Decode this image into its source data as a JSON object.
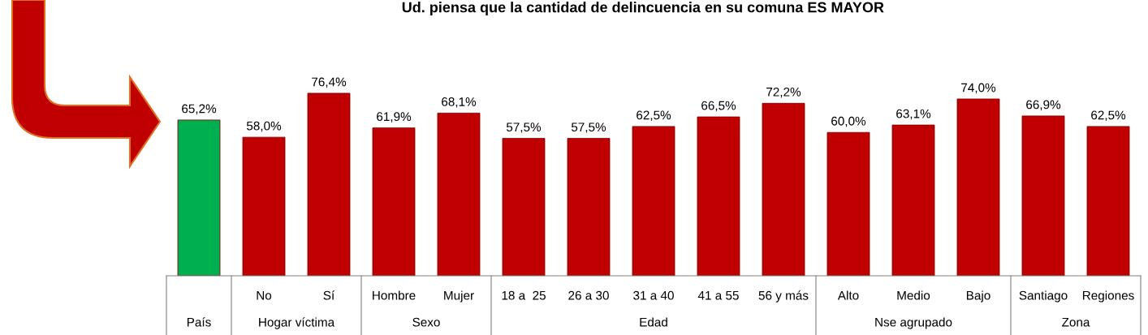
{
  "chart_data": {
    "type": "bar",
    "title": "Ud. piensa que la cantidad de delincuencia en su comuna ES MAYOR",
    "categories": [
      null,
      "No",
      "Sí",
      "Hombre",
      "Mujer",
      "18 a  25",
      "26 a 30",
      "31 a 40",
      "41 a 55",
      "56 y más",
      "Alto",
      "Medio",
      "Bajo",
      "Santiago",
      "Regiones"
    ],
    "values": [
      65.2,
      58.0,
      76.4,
      61.9,
      68.1,
      57.5,
      57.5,
      62.5,
      66.5,
      72.2,
      60.0,
      63.1,
      74.0,
      66.9,
      62.5
    ],
    "colors": [
      "#00b050",
      "#c00000",
      "#c00000",
      "#c00000",
      "#c00000",
      "#c00000",
      "#c00000",
      "#c00000",
      "#c00000",
      "#c00000",
      "#c00000",
      "#c00000",
      "#c00000",
      "#c00000",
      "#c00000"
    ],
    "value_labels": [
      "65,2%",
      "58,0%",
      "76,4%",
      "61,9%",
      "68,1%",
      "57,5%",
      "57,5%",
      "62,5%",
      "66,5%",
      "72,2%",
      "60,0%",
      "63,1%",
      "74,0%",
      "66,9%",
      "62,5%"
    ],
    "annotations": [
      "País",
      "Hogar víctima",
      "Sexo",
      "Edad",
      "Nse agrupado",
      "Zona"
    ],
    "legend": false
  }
}
